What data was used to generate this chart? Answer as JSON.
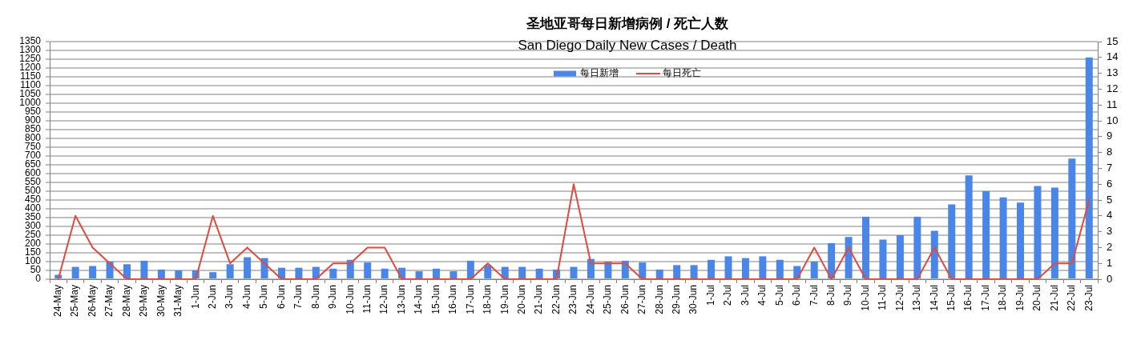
{
  "chart_data": {
    "type": "bar",
    "title": "圣地亚哥每日新增病例 / 死亡人数",
    "subtitle": "San Diego Daily New Cases / Death",
    "categories": [
      "24-May",
      "25-May",
      "26-May",
      "27-May",
      "28-May",
      "29-May",
      "30-May",
      "31-May",
      "1-Jun",
      "2-Jun",
      "3-Jun",
      "4-Jun",
      "5-Jun",
      "6-Jun",
      "7-Jun",
      "8-Jun",
      "9-Jun",
      "10-Jun",
      "11-Jun",
      "12-Jun",
      "13-Jun",
      "14-Jun",
      "15-Jun",
      "16-Jun",
      "17-Jun",
      "18-Jun",
      "19-Jun",
      "20-Jun",
      "21-Jun",
      "22-Jun",
      "23-Jun",
      "24-Jun",
      "25-Jun",
      "26-Jun",
      "27-Jun",
      "28-Jun",
      "29-Jun",
      "30-Jun",
      "1-Jul",
      "2-Jul",
      "3-Jul",
      "4-Jul",
      "5-Jul",
      "6-Jul",
      "7-Jul",
      "8-Jul",
      "9-Jul",
      "10-Jul",
      "11-Jul",
      "12-Jul",
      "13-Jul",
      "14-Jul",
      "15-Jul",
      "16-Jul",
      "17-Jul",
      "18-Jul",
      "19-Jul",
      "20-Jul",
      "21-Jul",
      "22-Jul",
      "23-Jul"
    ],
    "series": [
      {
        "name": "每日新增",
        "color": "#4a86e8",
        "values": [
          25,
          70,
          75,
          100,
          85,
          105,
          55,
          50,
          50,
          40,
          85,
          125,
          120,
          65,
          65,
          70,
          60,
          110,
          95,
          60,
          65,
          45,
          60,
          45,
          105,
          80,
          70,
          70,
          60,
          55,
          70,
          115,
          100,
          105,
          95,
          55,
          80,
          80,
          110,
          130,
          120,
          130,
          110,
          75,
          100,
          205,
          240,
          355,
          225,
          250,
          355,
          275,
          425,
          590,
          500,
          465,
          435,
          530,
          520,
          685,
          1260
        ]
      },
      {
        "name": "每日死亡",
        "type": "line",
        "axis": "y2",
        "color": "#e04a3f",
        "values": [
          0,
          4,
          2,
          1,
          0,
          0,
          0,
          0,
          0,
          4,
          1,
          2,
          1,
          0,
          0,
          0,
          1,
          1,
          2,
          2,
          0,
          0,
          0,
          0,
          0,
          1,
          0,
          0,
          0,
          0,
          6,
          1,
          1,
          1,
          0,
          0,
          0,
          0,
          0,
          0,
          0,
          0,
          0,
          0,
          2,
          0,
          2,
          0,
          0,
          0,
          0,
          2,
          0,
          0,
          0,
          0,
          0,
          0,
          1,
          1,
          5
        ]
      }
    ],
    "ylim": [
      0,
      1350
    ],
    "yticks": [
      0,
      50,
      100,
      150,
      200,
      250,
      300,
      350,
      400,
      450,
      500,
      550,
      600,
      650,
      700,
      750,
      800,
      850,
      900,
      950,
      1000,
      1050,
      1100,
      1150,
      1200,
      1250,
      1300,
      1350
    ],
    "y2lim": [
      0,
      15
    ],
    "y2ticks": [
      0,
      1,
      2,
      3,
      4,
      5,
      6,
      7,
      8,
      9,
      10,
      11,
      12,
      13,
      14,
      15
    ],
    "grid": "y",
    "legend": "top",
    "marker": "none"
  }
}
